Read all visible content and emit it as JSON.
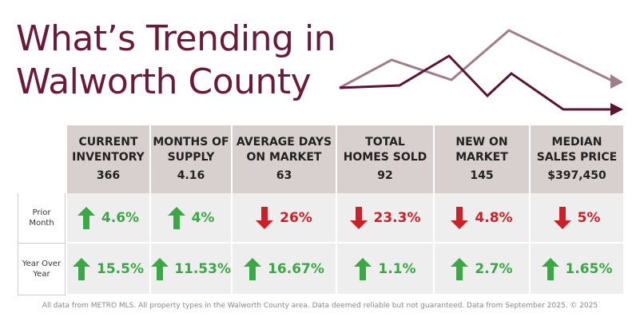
{
  "title": [
    "What’s Trending in",
    "Walworth County"
  ],
  "table": {
    "columns": [
      {
        "label": [
          "CURRENT",
          "INVENTORY"
        ],
        "value": "366"
      },
      {
        "label": [
          "MONTHS OF",
          "SUPPLY"
        ],
        "value": "4.16"
      },
      {
        "label": [
          "AVERAGE DAYS",
          "ON MARKET"
        ],
        "value": "63"
      },
      {
        "label": [
          "TOTAL",
          "HOMES SOLD"
        ],
        "value": "92"
      },
      {
        "label": [
          "NEW ON",
          "MARKET"
        ],
        "value": "145"
      },
      {
        "label": [
          "MEDIAN",
          "SALES PRICE"
        ],
        "value": "$397,450"
      }
    ],
    "rows": [
      {
        "label": [
          "Prior",
          "Month"
        ],
        "cells": [
          {
            "direction": "up",
            "text": "4.6%"
          },
          {
            "direction": "up",
            "text": "4%"
          },
          {
            "direction": "down",
            "text": "26%"
          },
          {
            "direction": "down",
            "text": "23.3%"
          },
          {
            "direction": "down",
            "text": "4.8%"
          },
          {
            "direction": "down",
            "text": "5%"
          }
        ]
      },
      {
        "label": [
          "Year Over",
          "Year"
        ],
        "cells": [
          {
            "direction": "up",
            "text": "15.5%"
          },
          {
            "direction": "up",
            "text": "11.53%"
          },
          {
            "direction": "up",
            "text": "16.67%"
          },
          {
            "direction": "up",
            "text": "1.1%"
          },
          {
            "direction": "up",
            "text": "2.7%"
          },
          {
            "direction": "up",
            "text": "1.65%"
          }
        ]
      }
    ]
  },
  "colors": {
    "up": "#3aa845",
    "down": "#cc2029"
  },
  "footer": "All data from METRO MLS. All property types in the Walworth County area. Data deemed reliable but not guaranteed. Data from September 2025. © 2025"
}
